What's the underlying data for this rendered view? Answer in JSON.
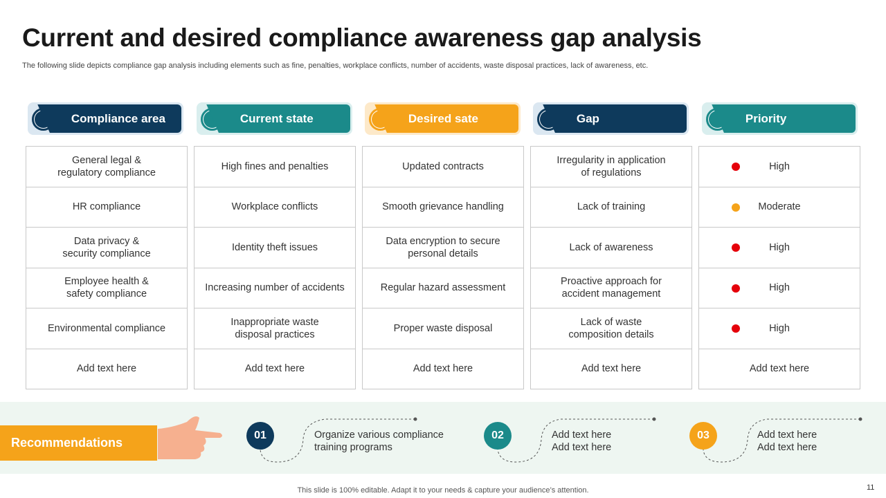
{
  "title": "Current and desired compliance awareness gap analysis",
  "subtitle": "The following slide depicts compliance gap analysis including elements such as fine, penalties, workplace conflicts, number of accidents, waste disposal practices, lack of awareness, etc.",
  "columns": [
    {
      "label": "Compliance area",
      "color": "#0e3a5c",
      "tint": "#dbe7f1"
    },
    {
      "label": "Current state",
      "color": "#1b8a8a",
      "tint": "#d9eeee"
    },
    {
      "label": "Desired sate",
      "color": "#f5a31a",
      "tint": "#fde9c9"
    },
    {
      "label": "Gap",
      "color": "#0e3a5c",
      "tint": "#dbe7f1"
    },
    {
      "label": "Priority",
      "color": "#1b8a8a",
      "tint": "#d9eeee"
    }
  ],
  "rows": [
    {
      "cells": [
        "General legal &\nregulatory compliance",
        "High fines and penalties",
        "Updated contracts",
        "Irregularity in application\nof regulations"
      ],
      "priority": {
        "label": "High",
        "dot": "#e5000a"
      }
    },
    {
      "cells": [
        "HR compliance",
        "Workplace conflicts",
        "Smooth grievance handling",
        "Lack of training"
      ],
      "priority": {
        "label": "Moderate",
        "dot": "#f5a31a"
      }
    },
    {
      "cells": [
        "Data privacy &\nsecurity compliance",
        "Identity theft issues",
        "Data encryption to secure\npersonal details",
        "Lack of awareness"
      ],
      "priority": {
        "label": "High",
        "dot": "#e5000a"
      }
    },
    {
      "cells": [
        "Employee health &\nsafety compliance",
        "Increasing number of accidents",
        "Regular hazard assessment",
        "Proactive approach for\naccident management"
      ],
      "priority": {
        "label": "High",
        "dot": "#e5000a"
      }
    },
    {
      "cells": [
        "Environmental compliance",
        "Inappropriate waste\ndisposal practices",
        "Proper waste disposal",
        "Lack of waste\ncomposition details"
      ],
      "priority": {
        "label": "High",
        "dot": "#e5000a"
      }
    },
    {
      "cells": [
        "Add text here",
        "Add text here",
        "Add text here",
        "Add text here"
      ],
      "priority": {
        "label": "Add text here"
      }
    }
  ],
  "recommendations": {
    "label": "Recommendations",
    "items": [
      {
        "number": "01",
        "color": "#0e3a5c",
        "text": "Organize various compliance\ntraining programs"
      },
      {
        "number": "02",
        "color": "#1b8a8a",
        "text": "Add text here\nAdd text here"
      },
      {
        "number": "03",
        "color": "#f5a31a",
        "text": "Add text here\nAdd text here"
      }
    ]
  },
  "footer": "This slide is 100% editable. Adapt it to your needs & capture your audience’s attention.",
  "page_number": "11"
}
